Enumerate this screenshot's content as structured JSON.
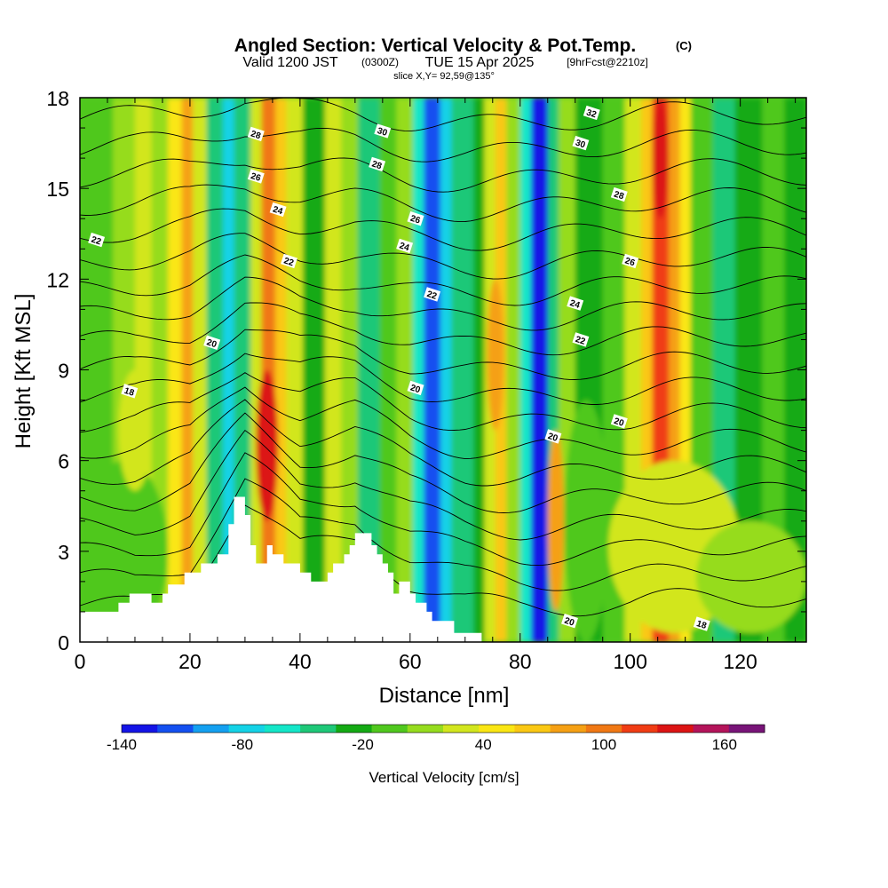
{
  "header": {
    "title": "Angled Section: Vertical Velocity & Pot.Temp.",
    "title_unit": "(C)",
    "valid_prefix": "Valid 1200 JST",
    "valid_utc": "(0300Z)",
    "valid_date": "TUE 15 Apr 2025",
    "valid_fcst": "[9hrFcst@2210z]",
    "slice": "slice X,Y= 92,59@135°"
  },
  "chart_data": {
    "type": "heatmap",
    "title": "Angled Section: Vertical Velocity & Pot.Temp.",
    "xlabel": "Distance [nm]",
    "ylabel": "Height [Kft MSL]",
    "xlim": [
      0,
      132
    ],
    "ylim": [
      0,
      18
    ],
    "x_ticks": [
      0,
      20,
      40,
      60,
      80,
      100,
      120
    ],
    "y_ticks": [
      0,
      3,
      6,
      9,
      12,
      15,
      18
    ],
    "colorbar": {
      "label": "Vertical Velocity [cm/s]",
      "range": [
        -140,
        180
      ],
      "step": 20,
      "ticks": [
        -140,
        -80,
        -20,
        40,
        100,
        160
      ],
      "colors": [
        "#1414e6",
        "#1450f0",
        "#14a0f0",
        "#14d2e6",
        "#14e6c8",
        "#1ec878",
        "#14aa14",
        "#50c81e",
        "#96dc1e",
        "#d2e61e",
        "#fae614",
        "#fac814",
        "#f5a014",
        "#f07814",
        "#f03c14",
        "#dc1414",
        "#b4145a",
        "#781478"
      ]
    },
    "velocity_columns": [
      {
        "x": 0,
        "w": 6,
        "v": 0
      },
      {
        "x": 6,
        "w": 4,
        "v": 20
      },
      {
        "x": 10,
        "w": 3,
        "v": 40
      },
      {
        "x": 13,
        "w": 3,
        "v": 20
      },
      {
        "x": 16,
        "w": 2.5,
        "v": 60
      },
      {
        "x": 18.5,
        "w": 2,
        "v": 110
      },
      {
        "x": 20.5,
        "w": 2.5,
        "v": 40
      },
      {
        "x": 23,
        "w": 3,
        "v": -30
      },
      {
        "x": 26,
        "w": 2,
        "v": -70
      },
      {
        "x": 28,
        "w": 3,
        "v": -40
      },
      {
        "x": 31,
        "w": 2,
        "v": 40
      },
      {
        "x": 33,
        "w": 2.5,
        "v": 120
      },
      {
        "x": 35.5,
        "w": 2,
        "v": 80
      },
      {
        "x": 37.5,
        "w": 3,
        "v": 40
      },
      {
        "x": 40.5,
        "w": 4,
        "v": -10
      },
      {
        "x": 44.5,
        "w": 3,
        "v": 40
      },
      {
        "x": 47.5,
        "w": 3,
        "v": 20
      },
      {
        "x": 50.5,
        "w": 4,
        "v": -30
      },
      {
        "x": 54.5,
        "w": 3,
        "v": 0
      },
      {
        "x": 57.5,
        "w": 3,
        "v": 30
      },
      {
        "x": 60.5,
        "w": 2,
        "v": -60
      },
      {
        "x": 62.5,
        "w": 3,
        "v": -110
      },
      {
        "x": 65.5,
        "w": 2,
        "v": -80
      },
      {
        "x": 67.5,
        "w": 4,
        "v": -40
      },
      {
        "x": 71.5,
        "w": 2,
        "v": -10
      },
      {
        "x": 73.5,
        "w": 2,
        "v": 40
      },
      {
        "x": 75.5,
        "w": 2,
        "v": 90
      },
      {
        "x": 77.5,
        "w": 2.5,
        "v": 20
      },
      {
        "x": 80,
        "w": 2,
        "v": -60
      },
      {
        "x": 82,
        "w": 3,
        "v": -130
      },
      {
        "x": 85,
        "w": 2,
        "v": -40
      },
      {
        "x": 87,
        "w": 3,
        "v": 20
      },
      {
        "x": 90,
        "w": 5,
        "v": -20
      },
      {
        "x": 95,
        "w": 4,
        "v": 0
      },
      {
        "x": 99,
        "w": 3,
        "v": 40
      },
      {
        "x": 102,
        "w": 2,
        "v": 90
      },
      {
        "x": 104,
        "w": 3,
        "v": 150
      },
      {
        "x": 107,
        "w": 2,
        "v": 110
      },
      {
        "x": 109,
        "w": 2,
        "v": 60
      },
      {
        "x": 111,
        "w": 4,
        "v": 10
      },
      {
        "x": 115,
        "w": 4,
        "v": -40
      },
      {
        "x": 119,
        "w": 5,
        "v": -20
      },
      {
        "x": 124,
        "w": 4,
        "v": 0
      },
      {
        "x": 128,
        "w": 4,
        "v": -10
      }
    ],
    "low_level_cells": [
      {
        "x": 0,
        "x2": 16,
        "y": 0,
        "y2": 6,
        "v": 10
      },
      {
        "x": 7,
        "x2": 13,
        "y": 5,
        "y2": 9,
        "v": 40
      },
      {
        "x": 32,
        "x2": 36,
        "y": 4,
        "y2": 9,
        "v": 160
      },
      {
        "x": 85,
        "x2": 88,
        "y": 1,
        "y2": 7,
        "v": 110
      },
      {
        "x": 74,
        "x2": 77,
        "y": 7,
        "y2": 12,
        "v": 100
      },
      {
        "x": 88,
        "x2": 96,
        "y": 0,
        "y2": 8,
        "v": 0
      },
      {
        "x": 96,
        "x2": 120,
        "y": 0.3,
        "y2": 6,
        "v": 40
      },
      {
        "x": 112,
        "x2": 132,
        "y": 0.3,
        "y2": 4,
        "v": 20
      },
      {
        "x": 104,
        "x2": 107,
        "y": 14,
        "y2": 18,
        "v": 170
      },
      {
        "x": 83,
        "x2": 85,
        "y": 13,
        "y2": 18,
        "v": -140
      }
    ],
    "terrain": [
      [
        0,
        1
      ],
      [
        7,
        1
      ],
      [
        7,
        1.3
      ],
      [
        9,
        1.3
      ],
      [
        9,
        1.6
      ],
      [
        13,
        1.6
      ],
      [
        13,
        1.3
      ],
      [
        15,
        1.3
      ],
      [
        15,
        1.6
      ],
      [
        16,
        1.6
      ],
      [
        16,
        1.9
      ],
      [
        19,
        1.9
      ],
      [
        19,
        2.3
      ],
      [
        22,
        2.3
      ],
      [
        22,
        2.6
      ],
      [
        25,
        2.6
      ],
      [
        25,
        2.9
      ],
      [
        27,
        2.9
      ],
      [
        27,
        3.9
      ],
      [
        28,
        3.9
      ],
      [
        28,
        4.8
      ],
      [
        30,
        4.8
      ],
      [
        30,
        4.2
      ],
      [
        31,
        4.2
      ],
      [
        31,
        3.2
      ],
      [
        32,
        3.2
      ],
      [
        32,
        2.6
      ],
      [
        34,
        2.6
      ],
      [
        34,
        3.2
      ],
      [
        35,
        3.2
      ],
      [
        35,
        2.9
      ],
      [
        37,
        2.9
      ],
      [
        37,
        2.6
      ],
      [
        40,
        2.6
      ],
      [
        40,
        2.3
      ],
      [
        42,
        2.3
      ],
      [
        42,
        2.0
      ],
      [
        45,
        2.0
      ],
      [
        45,
        2.3
      ],
      [
        46,
        2.3
      ],
      [
        46,
        2.6
      ],
      [
        48,
        2.6
      ],
      [
        48,
        2.9
      ],
      [
        49,
        2.9
      ],
      [
        49,
        3.2
      ],
      [
        50,
        3.2
      ],
      [
        50,
        3.6
      ],
      [
        53,
        3.6
      ],
      [
        53,
        3.2
      ],
      [
        54,
        3.2
      ],
      [
        54,
        2.9
      ],
      [
        55,
        2.9
      ],
      [
        55,
        2.6
      ],
      [
        56,
        2.6
      ],
      [
        56,
        2.3
      ],
      [
        57,
        2.3
      ],
      [
        57,
        1.6
      ],
      [
        58,
        1.6
      ],
      [
        58,
        2.0
      ],
      [
        60,
        2.0
      ],
      [
        60,
        1.6
      ],
      [
        61,
        1.6
      ],
      [
        61,
        1.3
      ],
      [
        63,
        1.3
      ],
      [
        63,
        1.0
      ],
      [
        64,
        1.0
      ],
      [
        64,
        0.7
      ],
      [
        68,
        0.7
      ],
      [
        68,
        0.3
      ],
      [
        73,
        0.3
      ],
      [
        73,
        0
      ],
      [
        132,
        0
      ]
    ],
    "theta_levels": [
      16,
      17,
      18,
      19,
      20,
      21,
      22,
      23,
      24,
      25,
      26,
      27,
      28,
      29,
      30,
      31,
      32,
      33,
      34
    ],
    "theta_base_height": [
      [
        0,
        1.2
      ],
      [
        10,
        1.0
      ],
      [
        20,
        1.5
      ],
      [
        30,
        4.5
      ],
      [
        40,
        3.0
      ],
      [
        50,
        3.5
      ],
      [
        60,
        2.2
      ],
      [
        70,
        1.6
      ],
      [
        80,
        1.3
      ],
      [
        90,
        1.2
      ],
      [
        100,
        1.1
      ],
      [
        110,
        1.2
      ],
      [
        120,
        1.3
      ],
      [
        132,
        1.4
      ]
    ],
    "contour_labels": [
      {
        "text": "28",
        "x": 32,
        "y": 16.8
      },
      {
        "text": "26",
        "x": 32,
        "y": 15.4
      },
      {
        "text": "24",
        "x": 36,
        "y": 14.3
      },
      {
        "text": "22",
        "x": 38,
        "y": 12.6
      },
      {
        "text": "20",
        "x": 24,
        "y": 9.9
      },
      {
        "text": "18",
        "x": 9,
        "y": 8.3
      },
      {
        "text": "22",
        "x": 3,
        "y": 13.3
      },
      {
        "text": "30",
        "x": 55,
        "y": 16.9
      },
      {
        "text": "28",
        "x": 54,
        "y": 15.8
      },
      {
        "text": "26",
        "x": 61,
        "y": 14.0
      },
      {
        "text": "24",
        "x": 59,
        "y": 13.1
      },
      {
        "text": "22",
        "x": 64,
        "y": 11.5
      },
      {
        "text": "20",
        "x": 61,
        "y": 8.4
      },
      {
        "text": "32",
        "x": 93,
        "y": 17.5
      },
      {
        "text": "30",
        "x": 91,
        "y": 16.5
      },
      {
        "text": "28",
        "x": 98,
        "y": 14.8
      },
      {
        "text": "26",
        "x": 100,
        "y": 12.6
      },
      {
        "text": "24",
        "x": 90,
        "y": 11.2
      },
      {
        "text": "22",
        "x": 91,
        "y": 10.0
      },
      {
        "text": "20",
        "x": 98,
        "y": 7.3
      },
      {
        "text": "20",
        "x": 86,
        "y": 6.8
      },
      {
        "text": "20",
        "x": 89,
        "y": 0.7
      },
      {
        "text": "18",
        "x": 113,
        "y": 0.6
      }
    ]
  }
}
